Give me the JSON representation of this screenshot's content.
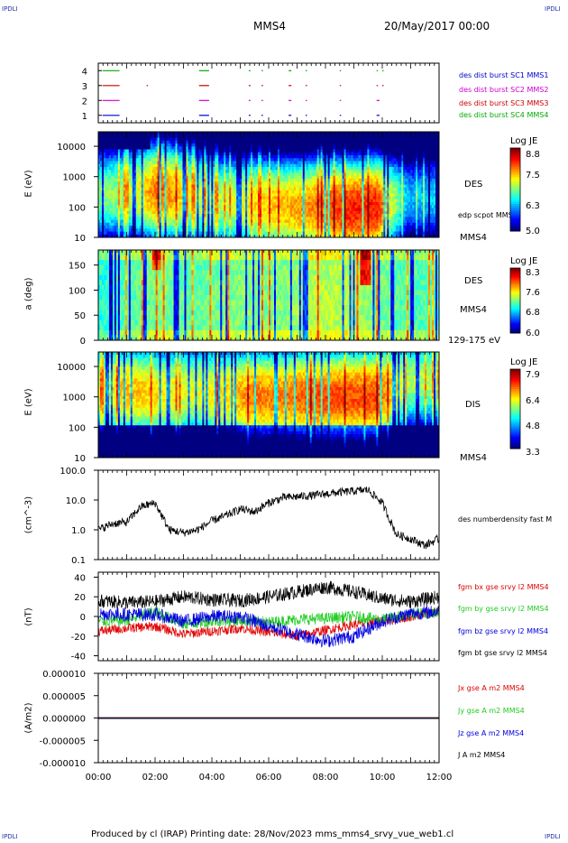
{
  "header": {
    "corner_left_top": "IPDLI",
    "corner_right_top": "IPDLI",
    "corner_left_bottom": "IPDLI",
    "corner_right_bottom": "IPDLI",
    "spacecraft": "MMS4",
    "date": "20/May/2017 00:00"
  },
  "footer": {
    "text": "Produced by cl (IRAP)   Printing date: 28/Nov/2023   mms_mms4_srvy_vue_web1.cl"
  },
  "time_axis": {
    "ticks": [
      "00:00",
      "02:00",
      "04:00",
      "06:00",
      "08:00",
      "10:00",
      "12:00"
    ],
    "hours": [
      0,
      2,
      4,
      6,
      8,
      10,
      12
    ]
  },
  "colors": {
    "bx": "#e00000",
    "by": "#22cc22",
    "bz": "#0000dd",
    "bt": "#000000",
    "burst1": "#0000cc",
    "burst2": "#cc00cc",
    "burst3": "#cc0000",
    "burst4": "#00aa00"
  },
  "chart_data": [
    {
      "type": "timeline",
      "id": "burst",
      "ylim": [
        0.5,
        4.5
      ],
      "yticks": [
        "1",
        "2",
        "3",
        "4"
      ],
      "legend": [
        "des dist burst SC1 MMS1",
        "des dist burst SC2 MMS2",
        "des dist burst SC3 MMS3",
        "des dist burst SC4 MMS4"
      ],
      "series": [
        {
          "level": 1,
          "color": "#0000cc",
          "intervals": [
            [
              0.15,
              0.75
            ],
            [
              3.55,
              3.9
            ],
            [
              5.3,
              5.36
            ],
            [
              5.75,
              5.8
            ],
            [
              6.7,
              6.8
            ],
            [
              7.3,
              7.35
            ],
            [
              8.5,
              8.55
            ],
            [
              9.8,
              9.9
            ]
          ]
        },
        {
          "level": 2,
          "color": "#cc00cc",
          "intervals": [
            [
              0.15,
              0.75
            ],
            [
              3.55,
              3.9
            ],
            [
              5.3,
              5.36
            ],
            [
              5.75,
              5.8
            ],
            [
              6.7,
              6.8
            ],
            [
              7.3,
              7.35
            ],
            [
              8.5,
              8.55
            ],
            [
              9.8,
              9.9
            ]
          ]
        },
        {
          "level": 3,
          "color": "#cc0000",
          "intervals": [
            [
              0.15,
              0.75
            ],
            [
              1.7,
              1.74
            ],
            [
              3.55,
              3.9
            ],
            [
              5.3,
              5.36
            ],
            [
              5.75,
              5.8
            ],
            [
              6.7,
              6.8
            ],
            [
              7.3,
              7.35
            ],
            [
              8.5,
              8.55
            ],
            [
              9.8,
              9.84
            ],
            [
              10.0,
              10.04
            ]
          ]
        },
        {
          "level": 4,
          "color": "#00aa00",
          "intervals": [
            [
              0.15,
              0.75
            ],
            [
              3.55,
              3.9
            ],
            [
              5.3,
              5.36
            ],
            [
              5.75,
              5.8
            ],
            [
              6.7,
              6.8
            ],
            [
              7.3,
              7.35
            ],
            [
              8.5,
              8.55
            ],
            [
              9.8,
              9.84
            ],
            [
              10.0,
              10.04
            ]
          ]
        }
      ]
    },
    {
      "type": "heatmap",
      "id": "des_energy",
      "ylabel": "E (eV)",
      "yscale": "log",
      "ylim": [
        10,
        30000
      ],
      "yticks": [
        "10",
        "100",
        "1000",
        "10000"
      ],
      "side_label": "DES",
      "small_label": "edp scpot MMS4",
      "bottom_label": "MMS4",
      "colorbar": {
        "title": "Log JE",
        "ticks": [
          "8.8",
          "7.5",
          "6.3",
          "5.0"
        ]
      },
      "peak_energy_log10": [
        2.4,
        2.5,
        2.5,
        2.4,
        2.2,
        2.1,
        2.0,
        2.0,
        1.9,
        2.0,
        2.3,
        2.3
      ],
      "peak_level": [
        0.5,
        0.55,
        0.8,
        0.6,
        0.55,
        0.65,
        0.7,
        0.75,
        0.85,
        0.85,
        0.3,
        0.35
      ]
    },
    {
      "type": "heatmap",
      "id": "des_pitch",
      "ylabel": "a (deg)",
      "ylim": [
        0,
        180
      ],
      "yticks": [
        "0",
        "50",
        "100",
        "150"
      ],
      "side_label": "DES",
      "small_label": "MMS4",
      "bottom_label": "129-175 eV",
      "colorbar": {
        "title": "Log JE",
        "ticks": [
          "8.3",
          "7.6",
          "6.8",
          "6.0"
        ]
      },
      "base_level": [
        0.4,
        0.45,
        0.5,
        0.45,
        0.5,
        0.5,
        0.5,
        0.55,
        0.55,
        0.5,
        0.45,
        0.45
      ]
    },
    {
      "type": "heatmap",
      "id": "dis_energy",
      "ylabel": "E (eV)",
      "yscale": "log",
      "ylim": [
        10,
        30000
      ],
      "yticks": [
        "10",
        "100",
        "1000",
        "10000"
      ],
      "side_label": "DIS",
      "bottom_label": "MMS4",
      "colorbar": {
        "title": "Log JE",
        "ticks": [
          "7.9",
          "6.4",
          "4.8",
          "3.3"
        ]
      },
      "peak_energy_log10": [
        3.3,
        3.2,
        3.1,
        3.2,
        3.1,
        3.0,
        3.0,
        3.0,
        3.0,
        3.0,
        3.5,
        3.6
      ],
      "peak_level": [
        0.65,
        0.75,
        0.7,
        0.65,
        0.7,
        0.8,
        0.8,
        0.85,
        0.85,
        0.85,
        0.6,
        0.6
      ]
    },
    {
      "type": "line",
      "id": "density",
      "ylabel": "(cm^-3)",
      "yscale": "log",
      "ylim": [
        0.1,
        100
      ],
      "yticks": [
        "100.0",
        "10.0",
        "1.0",
        "0.1"
      ],
      "legend": [
        "des numberdensity fast M"
      ],
      "x_hours": [
        0,
        0.5,
        1,
        1.5,
        2,
        2.5,
        3,
        3.5,
        4,
        4.5,
        5,
        5.5,
        6,
        6.5,
        7,
        7.5,
        8,
        8.5,
        9,
        9.5,
        10,
        10.5,
        11,
        11.5,
        12
      ],
      "values": [
        1.0,
        1.6,
        1.8,
        6.0,
        8.0,
        1.0,
        0.8,
        1.0,
        2.0,
        3.0,
        5.0,
        4.0,
        8.0,
        12.0,
        13.0,
        14.0,
        16.0,
        18.0,
        20.0,
        22.0,
        8.0,
        0.7,
        0.5,
        0.3,
        0.5
      ]
    },
    {
      "type": "line",
      "id": "bfield",
      "ylabel": "(nT)",
      "ylim": [
        -45,
        45
      ],
      "yticks": [
        "40",
        "20",
        "0",
        "-20",
        "-40"
      ],
      "legend": [
        "fgm bx gse srvy l2 MMS4",
        "fgm by gse srvy l2 MMS4",
        "fgm bz gse srvy l2 MMS4",
        "fgm bt gse srvy l2 MMS4"
      ],
      "x_hours": [
        0,
        1,
        2,
        3,
        4,
        5,
        6,
        7,
        8,
        9,
        10,
        11,
        12
      ],
      "series": [
        {
          "name": "bx",
          "values": [
            -15,
            -12,
            -10,
            -18,
            -15,
            -12,
            -16,
            -20,
            -14,
            -8,
            -5,
            0,
            5
          ]
        },
        {
          "name": "by",
          "values": [
            -5,
            -4,
            5,
            -8,
            -5,
            -4,
            -6,
            -3,
            -2,
            0,
            -3,
            2,
            4
          ]
        },
        {
          "name": "bz",
          "values": [
            3,
            2,
            2,
            -5,
            0,
            0,
            -10,
            -18,
            -25,
            -20,
            -5,
            3,
            5
          ]
        },
        {
          "name": "bt",
          "values": [
            16,
            14,
            15,
            20,
            17,
            16,
            20,
            25,
            30,
            25,
            18,
            15,
            20
          ]
        }
      ]
    },
    {
      "type": "line",
      "id": "current",
      "ylabel": "(A/m2)",
      "ylim": [
        -0.0001,
        0.0001
      ],
      "yticks": [
        "0.000010",
        "0.000005",
        "0.000000",
        "-0.000005",
        "-0.000010"
      ],
      "legend": [
        "Jx gse A m2 MMS4",
        "Jy gse A m2 MMS4",
        "Jz gse A m2 MMS4",
        "J A m2 MMS4"
      ],
      "series_colors": [
        "#e00000",
        "#22cc22",
        "#0000dd",
        "#000000"
      ],
      "values": [
        0,
        0,
        0,
        0
      ]
    }
  ]
}
